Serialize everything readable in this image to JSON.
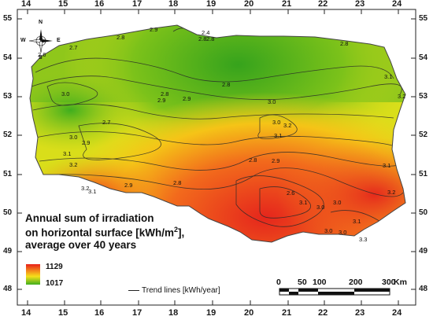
{
  "map": {
    "longitude_ticks": [
      "14",
      "15",
      "16",
      "17",
      "18",
      "19",
      "20",
      "21",
      "22",
      "23",
      "24"
    ],
    "latitude_ticks": [
      "55",
      "54",
      "53",
      "52",
      "51",
      "50",
      "49",
      "48"
    ],
    "contour_labels": [
      "2.6",
      "2.7",
      "2.8",
      "2.9",
      "2.8",
      "2.8",
      "2.4",
      "3.1",
      "3.2",
      "3.0",
      "2.8",
      "3.0",
      "3.0",
      "2.9",
      "3.1",
      "3.2",
      "2.9",
      "2.7",
      "3.1",
      "3.2",
      "2.9",
      "2.8",
      "2.8",
      "3.0",
      "2.6",
      "3.0",
      "3.1",
      "2.8",
      "2.9",
      "3.0",
      "3.1",
      "3.2",
      "3.3",
      "3.0",
      "2.8",
      "2.9",
      "3.1",
      "3.2",
      "3.1",
      "3.0"
    ]
  },
  "legend": {
    "title_line1": "Annual sum of irradiation",
    "title_line2_prefix": "on horizontal surface [kWh/m",
    "title_line2_sup": "2",
    "title_line2_suffix": "],",
    "title_line3": "average over 40 years",
    "max_value": "1129",
    "min_value": "1017",
    "max_color": "#e8201a",
    "min_color": "#3fae1e",
    "trend_label": "Trend lines [kWh/year]"
  },
  "scale_bar": {
    "labels": [
      "0",
      "50",
      "100",
      "200",
      "300"
    ],
    "unit": "Km"
  },
  "compass": {
    "n": "N",
    "s": "S",
    "e": "E",
    "w": "W"
  }
}
